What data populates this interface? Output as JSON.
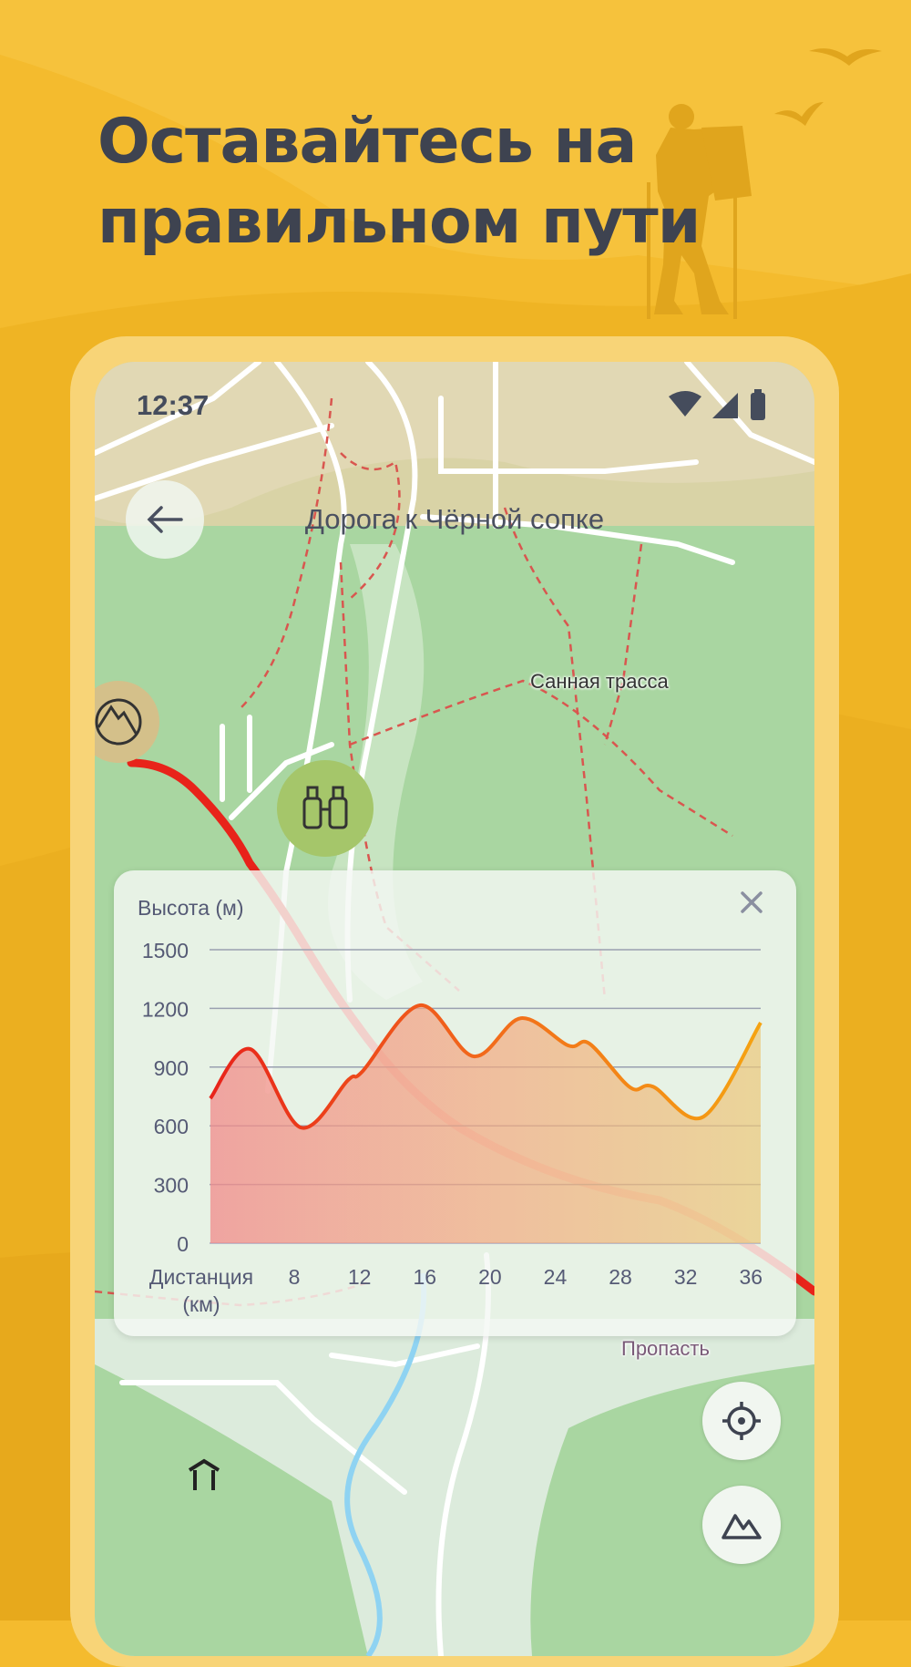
{
  "headline": {
    "line1": "Оставайтесь на",
    "line2": "правильном пути"
  },
  "colors": {
    "background": "#f4bb2e",
    "headline": "#3e4350",
    "route": "#e8231a",
    "map_green": "#a9d6a1"
  },
  "status_bar": {
    "time": "12:37",
    "icons": [
      "wifi-icon",
      "signal-icon",
      "battery-icon"
    ]
  },
  "header": {
    "back_icon": "arrow-left-icon",
    "title": "Дорога к Чёрной сопке"
  },
  "map": {
    "labels": [
      "Санная трасса",
      "Пропасть"
    ],
    "poi": [
      {
        "icon": "mountain-view-icon"
      },
      {
        "icon": "binoculars-icon"
      },
      {
        "icon": "shelter-icon"
      }
    ]
  },
  "elevation_panel": {
    "close_icon": "close-icon"
  },
  "chart_data": {
    "type": "area",
    "title": "Высота (м)",
    "xlabel": "Дистанция",
    "xlabel_unit": "(км)",
    "ylabel": "Высота (м)",
    "xlim": [
      2.8,
      36.6
    ],
    "ylim": [
      0,
      1500
    ],
    "xticks": [
      8,
      12,
      16,
      20,
      24,
      28,
      32,
      36
    ],
    "yticks": [
      0,
      300,
      600,
      900,
      1200,
      1500
    ],
    "grid": "horizontal",
    "line_gradient": [
      "#e8231a",
      "#f26a1b",
      "#f5a312"
    ],
    "points": [
      [
        2.85,
        740
      ],
      [
        5.3,
        992
      ],
      [
        8.4,
        591
      ],
      [
        11.3,
        834
      ],
      [
        12.2,
        880
      ],
      [
        15.7,
        1216
      ],
      [
        19.0,
        955
      ],
      [
        21.9,
        1150
      ],
      [
        24.8,
        1010
      ],
      [
        26.1,
        1020
      ],
      [
        28.6,
        796
      ],
      [
        30.0,
        800
      ],
      [
        33.1,
        647
      ],
      [
        36.6,
        1127
      ]
    ]
  },
  "controls": {
    "locate_icon": "crosshair-icon",
    "terrain_icon": "mountain-icon"
  }
}
